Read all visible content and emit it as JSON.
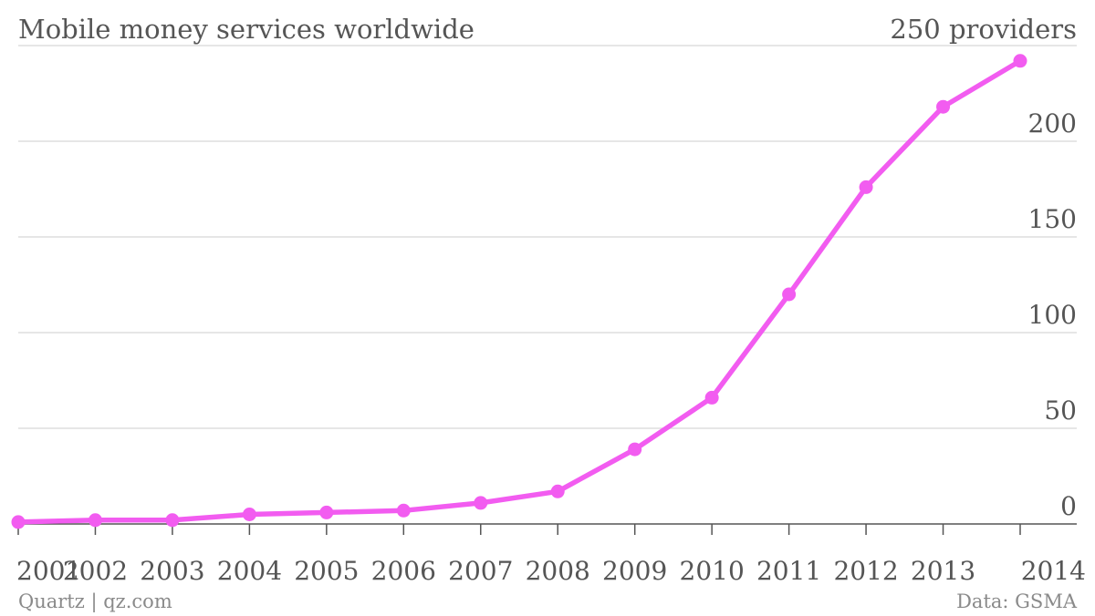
{
  "chart_data": {
    "type": "line",
    "title": "Mobile money services worldwide",
    "unit_label": "250 providers",
    "x": [
      "2001",
      "2002",
      "2003",
      "2004",
      "2005",
      "2006",
      "2007",
      "2008",
      "2009",
      "2010",
      "2011",
      "2012",
      "2013",
      "2014"
    ],
    "series": [
      {
        "values": [
          1,
          2,
          2,
          5,
          6,
          7,
          11,
          17,
          39,
          66,
          120,
          176,
          218,
          242
        ]
      }
    ],
    "y_ticks": [
      "0",
      "50",
      "100",
      "150",
      "200"
    ],
    "ylim": [
      0,
      250
    ],
    "grid": true,
    "y_axis_side": "right",
    "colors": {
      "line": "#f25cf0",
      "grid": "#dddddd",
      "axis": "#555555"
    }
  },
  "footer": {
    "source": "Quartz | qz.com",
    "data_credit": "Data: GSMA"
  }
}
